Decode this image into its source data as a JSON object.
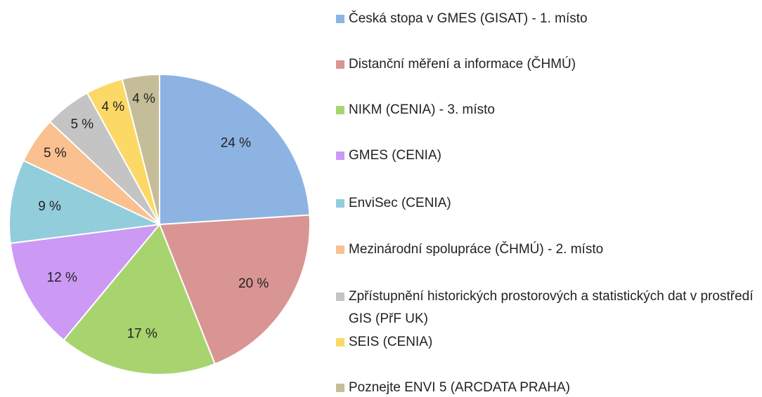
{
  "chart_data": {
    "type": "pie",
    "categories": [
      "Česká stopa v GMES (GISAT) - 1. místo",
      "Distanční měření a informace (ČHMÚ)",
      "NIKM (CENIA) - 3. místo",
      "GMES (CENIA)",
      "EnviSec (CENIA)",
      "Mezinárodní spolupráce (ČHMÚ) - 2. místo",
      "Zpřístupnění historických prostorových a statistických dat v prostředí GIS (PřF UK)",
      "SEIS (CENIA)",
      "Poznejte ENVI 5 (ARCDATA PRAHA)"
    ],
    "values": [
      24,
      20,
      17,
      12,
      9,
      5,
      5,
      4,
      4
    ],
    "value_labels": [
      "24 %",
      "20 %",
      "17 %",
      "12 %",
      "9 %",
      "5 %",
      "5 %",
      "4 %",
      "4 %"
    ],
    "colors": [
      "#8db3e2",
      "#d99593",
      "#a8d46f",
      "#cc9af5",
      "#92cddc",
      "#fac08f",
      "#c4c4c4",
      "#fcd966",
      "#c4bd97"
    ],
    "legend": "right"
  }
}
